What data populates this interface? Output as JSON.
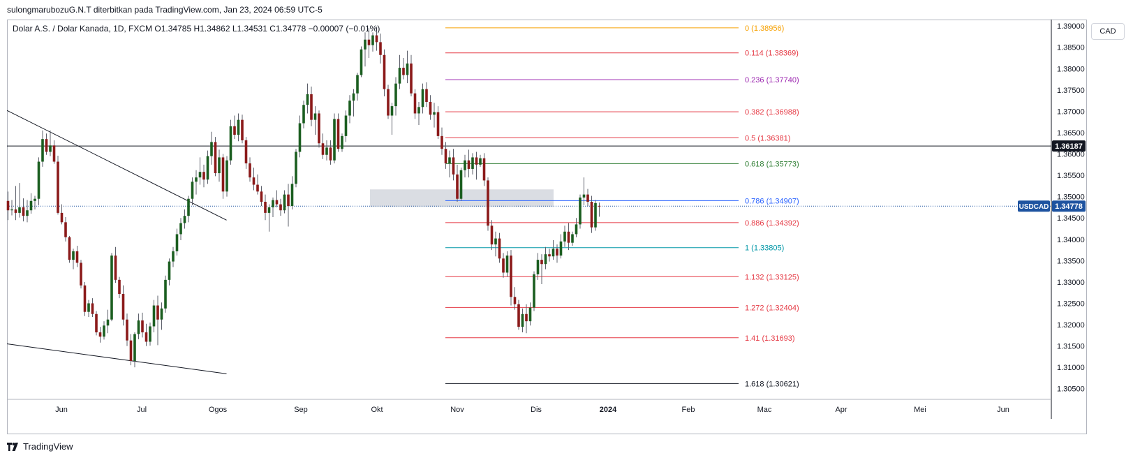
{
  "header": {
    "caption": "sulongmarubozuG.N.T diterbitkan pada TradingView.com, Jan 23, 2024 06:59 UTC-5"
  },
  "legend": {
    "text": "Dolar A.S. / Dolar Kanada, 1D, FXCM  O1.34785  H1.34862  L1.34531  C1.34778  −0.00007 (−0.01%)"
  },
  "currency_button": "CAD",
  "brand": {
    "name": "TradingView"
  },
  "chart_data": {
    "type": "candlestick",
    "symbol": "USDCAD",
    "timeframe": "1D",
    "source": "FXCM",
    "ohlc_latest": {
      "open": 1.34785,
      "high": 1.34862,
      "low": 1.34531,
      "close": 1.34778,
      "change": -7e-05,
      "change_pct": -0.01
    },
    "y_axis": {
      "range": [
        1.3025,
        1.3915
      ],
      "ticks": [
        "1.39000",
        "1.38500",
        "1.38000",
        "1.37500",
        "1.37000",
        "1.36500",
        "1.36000",
        "1.35500",
        "1.35000",
        "1.34500",
        "1.34000",
        "1.33500",
        "1.33000",
        "1.32500",
        "1.32000",
        "1.31500",
        "1.31000",
        "1.30500"
      ]
    },
    "x_axis": {
      "labels": [
        {
          "label": "Jun",
          "bold": false
        },
        {
          "label": "Jul",
          "bold": false
        },
        {
          "label": "Ogos",
          "bold": false
        },
        {
          "label": "Sep",
          "bold": false
        },
        {
          "label": "Okt",
          "bold": false
        },
        {
          "label": "Nov",
          "bold": false
        },
        {
          "label": "Dis",
          "bold": false
        },
        {
          "label": "2024",
          "bold": true
        },
        {
          "label": "Feb",
          "bold": false
        },
        {
          "label": "Mac",
          "bold": false
        },
        {
          "label": "Apr",
          "bold": false
        },
        {
          "label": "Mei",
          "bold": false
        },
        {
          "label": "Jun",
          "bold": false
        }
      ]
    },
    "price_labels": [
      {
        "text": "1.36187",
        "value": 1.36187,
        "bg": "#131722",
        "color": "#ffffff"
      },
      {
        "text": "1.34778",
        "value": 1.34778,
        "bg": "#1e53a0",
        "color": "#ffffff",
        "tag": "USDCAD"
      }
    ],
    "horizontal_line": {
      "value": 1.36187,
      "color": "#131722"
    },
    "last_price_line": {
      "value": 1.34778,
      "color": "#1e53a0"
    },
    "fibonacci": [
      {
        "label": "0 (1.38956)",
        "value": 1.38956,
        "color": "#f6a000"
      },
      {
        "label": "0.114 (1.38369)",
        "value": 1.38369,
        "color": "#e53944"
      },
      {
        "label": "0.236 (1.37740)",
        "value": 1.3774,
        "color": "#9c27b0"
      },
      {
        "label": "0.382 (1.36988)",
        "value": 1.36988,
        "color": "#e53944"
      },
      {
        "label": "0.5 (1.36381)",
        "value": 1.36381,
        "color": "#e53944"
      },
      {
        "label": "0.618 (1.35773)",
        "value": 1.35773,
        "color": "#2e7d32"
      },
      {
        "label": "0.786 (1.34907)",
        "value": 1.34907,
        "color": "#2962ff"
      },
      {
        "label": "0.886 (1.34392)",
        "value": 1.34392,
        "color": "#e53944"
      },
      {
        "label": "1 (1.33805)",
        "value": 1.33805,
        "color": "#0097a7"
      },
      {
        "label": "1.132 (1.33125)",
        "value": 1.33125,
        "color": "#e53944"
      },
      {
        "label": "1.272 (1.32404)",
        "value": 1.32404,
        "color": "#e53944"
      },
      {
        "label": "1.41 (1.31693)",
        "value": 1.31693,
        "color": "#e53944"
      },
      {
        "label": "1.618 (1.30621)",
        "value": 1.30621,
        "color": "#131722"
      }
    ],
    "supply_zone": {
      "top": 1.3517,
      "bottom": 1.3476,
      "color": "#d1d4dc"
    },
    "trendlines": [
      {
        "from": {
          "date": "2023-04-18",
          "price": 1.3702
        },
        "to": {
          "date": "2023-08-11",
          "price": 1.3445
        }
      },
      {
        "from": {
          "date": "2023-04-18",
          "price": 1.3155
        },
        "to": {
          "date": "2023-08-11",
          "price": 1.3085
        }
      }
    ],
    "colors": {
      "up": "#1b5e20",
      "down": "#8b1a1a",
      "wick": "#5d606b"
    },
    "candles": [
      [
        1.349,
        1.3512,
        1.3445,
        1.3468
      ],
      [
        1.3468,
        1.3492,
        1.3456,
        1.347
      ],
      [
        1.347,
        1.3525,
        1.3445,
        1.3462
      ],
      [
        1.3462,
        1.3532,
        1.3451,
        1.3475
      ],
      [
        1.3475,
        1.3496,
        1.3442,
        1.3455
      ],
      [
        1.3455,
        1.3492,
        1.344,
        1.3468
      ],
      [
        1.3468,
        1.3508,
        1.346,
        1.349
      ],
      [
        1.349,
        1.3502,
        1.347,
        1.3495
      ],
      [
        1.3495,
        1.3592,
        1.348,
        1.3582
      ],
      [
        1.3582,
        1.3655,
        1.357,
        1.3635
      ],
      [
        1.3635,
        1.3648,
        1.3598,
        1.3605
      ],
      [
        1.3605,
        1.3655,
        1.3595,
        1.362
      ],
      [
        1.362,
        1.3632,
        1.3577,
        1.3582
      ],
      [
        1.3582,
        1.3596,
        1.3458,
        1.3462
      ],
      [
        1.3462,
        1.3482,
        1.3435,
        1.344
      ],
      [
        1.344,
        1.3452,
        1.3395,
        1.3405
      ],
      [
        1.3405,
        1.3408,
        1.3345,
        1.3352
      ],
      [
        1.3352,
        1.3378,
        1.333,
        1.3372
      ],
      [
        1.3372,
        1.3385,
        1.3335,
        1.3345
      ],
      [
        1.3345,
        1.3352,
        1.3285,
        1.3292
      ],
      [
        1.3292,
        1.33,
        1.322,
        1.323
      ],
      [
        1.323,
        1.3258,
        1.3218,
        1.325
      ],
      [
        1.325,
        1.3262,
        1.3218,
        1.3225
      ],
      [
        1.3225,
        1.3232,
        1.3175,
        1.3182
      ],
      [
        1.3182,
        1.3195,
        1.3158,
        1.3172
      ],
      [
        1.3172,
        1.3208,
        1.3165,
        1.3198
      ],
      [
        1.3198,
        1.3235,
        1.318,
        1.3212
      ],
      [
        1.3212,
        1.3368,
        1.3208,
        1.3362
      ],
      [
        1.3362,
        1.3382,
        1.3298,
        1.3305
      ],
      [
        1.3305,
        1.3312,
        1.3262,
        1.3272
      ],
      [
        1.3272,
        1.3292,
        1.3198,
        1.3212
      ],
      [
        1.3212,
        1.3226,
        1.315,
        1.3163
      ],
      [
        1.3163,
        1.3178,
        1.3105,
        1.3115
      ],
      [
        1.3115,
        1.3182,
        1.31,
        1.3178
      ],
      [
        1.3178,
        1.3226,
        1.3166,
        1.321
      ],
      [
        1.321,
        1.3228,
        1.317,
        1.3182
      ],
      [
        1.3182,
        1.3202,
        1.315,
        1.316
      ],
      [
        1.316,
        1.3205,
        1.3151,
        1.3196
      ],
      [
        1.3196,
        1.3258,
        1.3182,
        1.3245
      ],
      [
        1.3245,
        1.3268,
        1.3152,
        1.3212
      ],
      [
        1.3212,
        1.3252,
        1.3188,
        1.3238
      ],
      [
        1.3238,
        1.3315,
        1.3228,
        1.3305
      ],
      [
        1.3305,
        1.3355,
        1.3292,
        1.3348
      ],
      [
        1.3348,
        1.3382,
        1.3335,
        1.3372
      ],
      [
        1.3372,
        1.3425,
        1.3362,
        1.3412
      ],
      [
        1.3412,
        1.345,
        1.3398,
        1.3438
      ],
      [
        1.3438,
        1.347,
        1.3425,
        1.3455
      ],
      [
        1.3455,
        1.3502,
        1.344,
        1.3495
      ],
      [
        1.3495,
        1.3545,
        1.348,
        1.3535
      ],
      [
        1.3535,
        1.3562,
        1.3505,
        1.3545
      ],
      [
        1.3545,
        1.3592,
        1.3528,
        1.3558
      ],
      [
        1.3558,
        1.3575,
        1.3522,
        1.354
      ],
      [
        1.354,
        1.3608,
        1.353,
        1.3595
      ],
      [
        1.3595,
        1.3652,
        1.3575,
        1.3628
      ],
      [
        1.3628,
        1.364,
        1.3548,
        1.3555
      ],
      [
        1.3555,
        1.361,
        1.3535,
        1.3592
      ],
      [
        1.3592,
        1.36,
        1.3495,
        1.3512
      ],
      [
        1.3512,
        1.3595,
        1.35,
        1.3585
      ],
      [
        1.3585,
        1.368,
        1.3575,
        1.3665
      ],
      [
        1.3665,
        1.369,
        1.3635,
        1.3645
      ],
      [
        1.3645,
        1.3695,
        1.363,
        1.368
      ],
      [
        1.368,
        1.3692,
        1.3625,
        1.3632
      ],
      [
        1.3632,
        1.364,
        1.3565,
        1.3578
      ],
      [
        1.3578,
        1.3592,
        1.3535,
        1.3545
      ],
      [
        1.3545,
        1.3568,
        1.3515,
        1.3528
      ],
      [
        1.3528,
        1.3552,
        1.3505,
        1.3512
      ],
      [
        1.3512,
        1.3525,
        1.3478,
        1.3488
      ],
      [
        1.3488,
        1.3505,
        1.3445,
        1.3462
      ],
      [
        1.3462,
        1.3482,
        1.3418,
        1.3475
      ],
      [
        1.3475,
        1.3498,
        1.3452,
        1.3492
      ],
      [
        1.3492,
        1.3515,
        1.3475,
        1.3482
      ],
      [
        1.3482,
        1.3495,
        1.3455,
        1.3468
      ],
      [
        1.3468,
        1.3515,
        1.3461,
        1.3505
      ],
      [
        1.3505,
        1.353,
        1.343,
        1.3478
      ],
      [
        1.3478,
        1.3548,
        1.347,
        1.353
      ],
      [
        1.353,
        1.3612,
        1.3522,
        1.3605
      ],
      [
        1.3605,
        1.369,
        1.3592,
        1.3672
      ],
      [
        1.3672,
        1.3725,
        1.366,
        1.3715
      ],
      [
        1.3715,
        1.3765,
        1.3695,
        1.374
      ],
      [
        1.374,
        1.3758,
        1.3665,
        1.368
      ],
      [
        1.368,
        1.3712,
        1.3645,
        1.3695
      ],
      [
        1.3695,
        1.3702,
        1.3615,
        1.3625
      ],
      [
        1.3625,
        1.3648,
        1.3588,
        1.3598
      ],
      [
        1.3598,
        1.3632,
        1.3585,
        1.3615
      ],
      [
        1.3615,
        1.3632,
        1.3575,
        1.3585
      ],
      [
        1.3585,
        1.3695,
        1.3578,
        1.3682
      ],
      [
        1.3682,
        1.3695,
        1.3605,
        1.3612
      ],
      [
        1.3612,
        1.3648,
        1.3605,
        1.3642
      ],
      [
        1.3642,
        1.3702,
        1.3628,
        1.369
      ],
      [
        1.369,
        1.3738,
        1.3672,
        1.3725
      ],
      [
        1.3725,
        1.3752,
        1.3688,
        1.3742
      ],
      [
        1.3742,
        1.379,
        1.3725,
        1.3785
      ],
      [
        1.3785,
        1.3852,
        1.378,
        1.3845
      ],
      [
        1.3845,
        1.3885,
        1.3805,
        1.3868
      ],
      [
        1.3868,
        1.3895,
        1.3825,
        1.3855
      ],
      [
        1.3855,
        1.3885,
        1.384,
        1.3878
      ],
      [
        1.3878,
        1.3898,
        1.3842,
        1.3862
      ],
      [
        1.3862,
        1.3882,
        1.3812,
        1.3832
      ],
      [
        1.3832,
        1.3845,
        1.3735,
        1.3752
      ],
      [
        1.3752,
        1.3762,
        1.3682,
        1.369
      ],
      [
        1.369,
        1.372,
        1.3645,
        1.3712
      ],
      [
        1.3712,
        1.378,
        1.369,
        1.3765
      ],
      [
        1.3765,
        1.3832,
        1.3752,
        1.3802
      ],
      [
        1.3802,
        1.3825,
        1.3775,
        1.3785
      ],
      [
        1.3785,
        1.3842,
        1.3766,
        1.3812
      ],
      [
        1.3812,
        1.3832,
        1.3735,
        1.3742
      ],
      [
        1.3742,
        1.3752,
        1.3682,
        1.3695
      ],
      [
        1.3695,
        1.3722,
        1.3668,
        1.371
      ],
      [
        1.371,
        1.3765,
        1.3695,
        1.3752
      ],
      [
        1.3752,
        1.3768,
        1.371,
        1.3722
      ],
      [
        1.3722,
        1.3738,
        1.368,
        1.3692
      ],
      [
        1.3692,
        1.372,
        1.3662,
        1.3698
      ],
      [
        1.3698,
        1.3712,
        1.3635,
        1.3642
      ],
      [
        1.3642,
        1.3662,
        1.3598,
        1.3612
      ],
      [
        1.3612,
        1.3628,
        1.3565,
        1.3578
      ],
      [
        1.3578,
        1.3608,
        1.3545,
        1.3592
      ],
      [
        1.3592,
        1.3612,
        1.3538,
        1.3552
      ],
      [
        1.3552,
        1.3575,
        1.3488,
        1.3495
      ],
      [
        1.3495,
        1.3568,
        1.349,
        1.3562
      ],
      [
        1.3562,
        1.3598,
        1.3545,
        1.3585
      ],
      [
        1.3585,
        1.361,
        1.3545,
        1.3565
      ],
      [
        1.3565,
        1.3602,
        1.3552,
        1.3592
      ],
      [
        1.3592,
        1.3605,
        1.354,
        1.3575
      ],
      [
        1.3575,
        1.3598,
        1.357,
        1.359
      ],
      [
        1.359,
        1.3602,
        1.3525,
        1.3538
      ],
      [
        1.3538,
        1.3545,
        1.342,
        1.3432
      ],
      [
        1.3432,
        1.3445,
        1.3375,
        1.3388
      ],
      [
        1.3388,
        1.3418,
        1.336,
        1.3402
      ],
      [
        1.3402,
        1.3415,
        1.3345,
        1.3355
      ],
      [
        1.3355,
        1.3368,
        1.331,
        1.3322
      ],
      [
        1.3322,
        1.3372,
        1.3312,
        1.3362
      ],
      [
        1.3362,
        1.3375,
        1.3245,
        1.3265
      ],
      [
        1.3265,
        1.3288,
        1.3235,
        1.3248
      ],
      [
        1.3248,
        1.3258,
        1.3188,
        1.3195
      ],
      [
        1.3195,
        1.3238,
        1.3182,
        1.3225
      ],
      [
        1.3225,
        1.3248,
        1.318,
        1.3208
      ],
      [
        1.3208,
        1.3252,
        1.3198,
        1.324
      ],
      [
        1.324,
        1.3325,
        1.3232,
        1.3318
      ],
      [
        1.3318,
        1.3368,
        1.3305,
        1.3352
      ],
      [
        1.3352,
        1.3365,
        1.3295,
        1.3342
      ],
      [
        1.3342,
        1.3382,
        1.333,
        1.3365
      ],
      [
        1.3365,
        1.3378,
        1.3348,
        1.336
      ],
      [
        1.336,
        1.3398,
        1.3352,
        1.3378
      ],
      [
        1.3378,
        1.3388,
        1.3345,
        1.3362
      ],
      [
        1.3362,
        1.3412,
        1.3355,
        1.3395
      ],
      [
        1.3395,
        1.3432,
        1.3382,
        1.3418
      ],
      [
        1.3418,
        1.3438,
        1.3375,
        1.3392
      ],
      [
        1.3392,
        1.3418,
        1.3385,
        1.3412
      ],
      [
        1.3412,
        1.345,
        1.3405,
        1.3435
      ],
      [
        1.3435,
        1.3505,
        1.3425,
        1.3498
      ],
      [
        1.3498,
        1.3545,
        1.348,
        1.3505
      ],
      [
        1.3505,
        1.3518,
        1.3478,
        1.3488
      ],
      [
        1.3488,
        1.3502,
        1.3415,
        1.3428
      ],
      [
        1.3428,
        1.3492,
        1.342,
        1.3485
      ],
      [
        1.34785,
        1.34862,
        1.34531,
        1.34778
      ]
    ]
  }
}
